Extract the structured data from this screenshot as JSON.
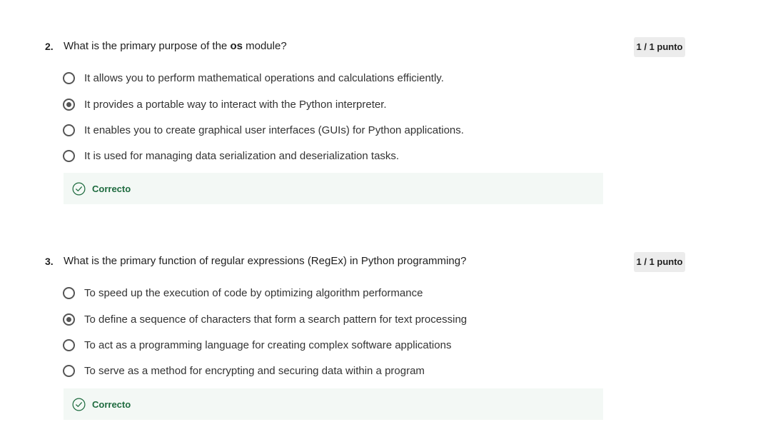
{
  "questions": [
    {
      "number": "2.",
      "prompt_before": "What is the primary purpose of the ",
      "prompt_bold": "os",
      "prompt_after": " module?",
      "score": "1 / 1 punto",
      "options": [
        {
          "label": "It allows you to perform mathematical operations and calculations efficiently.",
          "selected": false
        },
        {
          "label": "It provides a portable way to interact with the Python interpreter.",
          "selected": true
        },
        {
          "label": "It enables you to create graphical user interfaces (GUIs) for Python applications.",
          "selected": false
        },
        {
          "label": "It is used for managing data serialization and deserialization tasks.",
          "selected": false
        }
      ],
      "feedback": "Correcto"
    },
    {
      "number": "3.",
      "prompt": "What is the primary function of regular expressions (RegEx) in Python programming?",
      "score": "1 / 1 punto",
      "options": [
        {
          "label": "To speed up the execution of code by optimizing algorithm performance",
          "selected": false
        },
        {
          "label": "To define a sequence of characters that form a search pattern for text processing",
          "selected": true
        },
        {
          "label": "To act as a programming language for creating complex software applications",
          "selected": false
        },
        {
          "label": "To serve as a method for encrypting and securing data within a program",
          "selected": false
        }
      ],
      "feedback": "Correcto"
    }
  ],
  "colors": {
    "feedback_bg": "#f3f8f5",
    "correct_green": "#1e6b3f",
    "badge_bg": "#ececec"
  },
  "icons": {
    "feedback": "check-circle-icon",
    "radio": "radio-button"
  }
}
